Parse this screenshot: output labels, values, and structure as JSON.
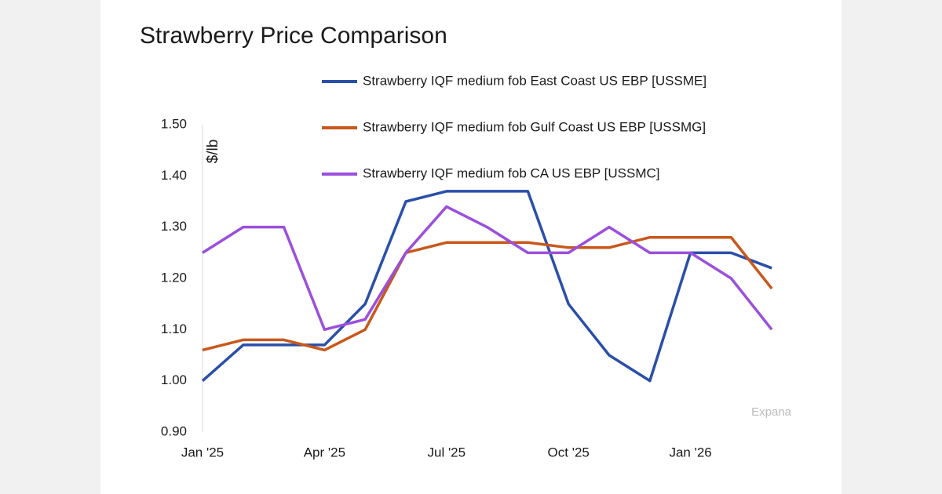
{
  "chart_data": {
    "type": "line",
    "title": "Strawberry Price Comparison",
    "y_label": "$/lb",
    "source": "Expana",
    "categories": [
      "Jan '25",
      null,
      null,
      "Apr '25",
      null,
      null,
      "Jul '25",
      null,
      null,
      "Oct '25",
      null,
      null,
      "Jan '26",
      null,
      null
    ],
    "series": [
      {
        "name": "Strawberry IQF medium fob East Coast US EBP [USSME]",
        "color": "#2a4fa8",
        "values": [
          1.0,
          1.07,
          1.07,
          1.07,
          1.15,
          1.35,
          1.37,
          1.37,
          1.37,
          1.15,
          1.05,
          1.0,
          1.25,
          1.25,
          1.22
        ]
      },
      {
        "name": "Strawberry IQF medium fob Gulf Coast US EBP [USSMG]",
        "color": "#c8581c",
        "values": [
          1.06,
          1.08,
          1.08,
          1.06,
          1.1,
          1.25,
          1.27,
          1.27,
          1.27,
          1.26,
          1.26,
          1.28,
          1.28,
          1.28,
          1.18
        ]
      },
      {
        "name": "Strawberry IQF medium fob CA US EBP [USSMC]",
        "color": "#9b4fdc",
        "values": [
          1.25,
          1.3,
          1.3,
          1.1,
          1.12,
          1.25,
          1.34,
          1.3,
          1.25,
          1.25,
          1.3,
          1.25,
          1.25,
          1.2,
          1.1
        ]
      }
    ],
    "ylim": [
      0.9,
      1.5
    ],
    "yticks": [
      {
        "value": 0.9,
        "label": "0.90"
      },
      {
        "value": 1.0,
        "label": "1.00"
      },
      {
        "value": 1.1,
        "label": "1.10"
      },
      {
        "value": 1.2,
        "label": "1.20"
      },
      {
        "value": 1.3,
        "label": "1.30"
      },
      {
        "value": 1.4,
        "label": "1.40"
      },
      {
        "value": 1.5,
        "label": "1.50"
      }
    ],
    "grid": false
  }
}
